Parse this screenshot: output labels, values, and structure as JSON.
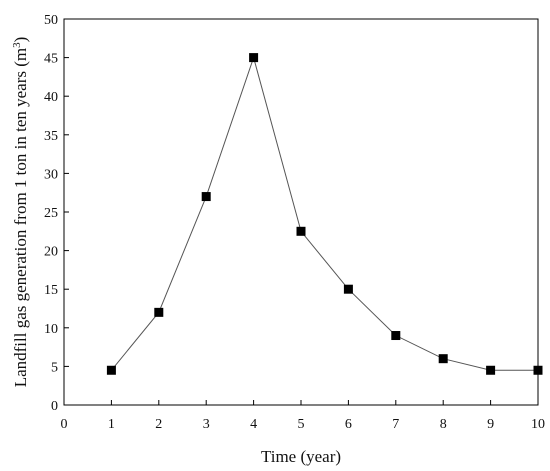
{
  "chart_data": {
    "type": "line",
    "xlabel": "Time (year)",
    "ylabel_prefix": "Landfill gas generation from 1 ton in ten years (m",
    "ylabel_sup": "3",
    "ylabel_suffix": ")",
    "xlim": [
      0,
      10
    ],
    "ylim": [
      0,
      50
    ],
    "x_ticks": [
      0,
      1,
      2,
      3,
      4,
      5,
      6,
      7,
      8,
      9,
      10
    ],
    "y_ticks": [
      0,
      5,
      10,
      15,
      20,
      25,
      30,
      35,
      40,
      45,
      50
    ],
    "grid": false,
    "marker": "square",
    "line_color": "#555555",
    "marker_color": "#000000",
    "x": [
      1,
      2,
      3,
      4,
      5,
      6,
      7,
      8,
      9,
      10
    ],
    "y": [
      4.5,
      12,
      27,
      45,
      22.5,
      15,
      9,
      6,
      4.5,
      4.5
    ]
  }
}
